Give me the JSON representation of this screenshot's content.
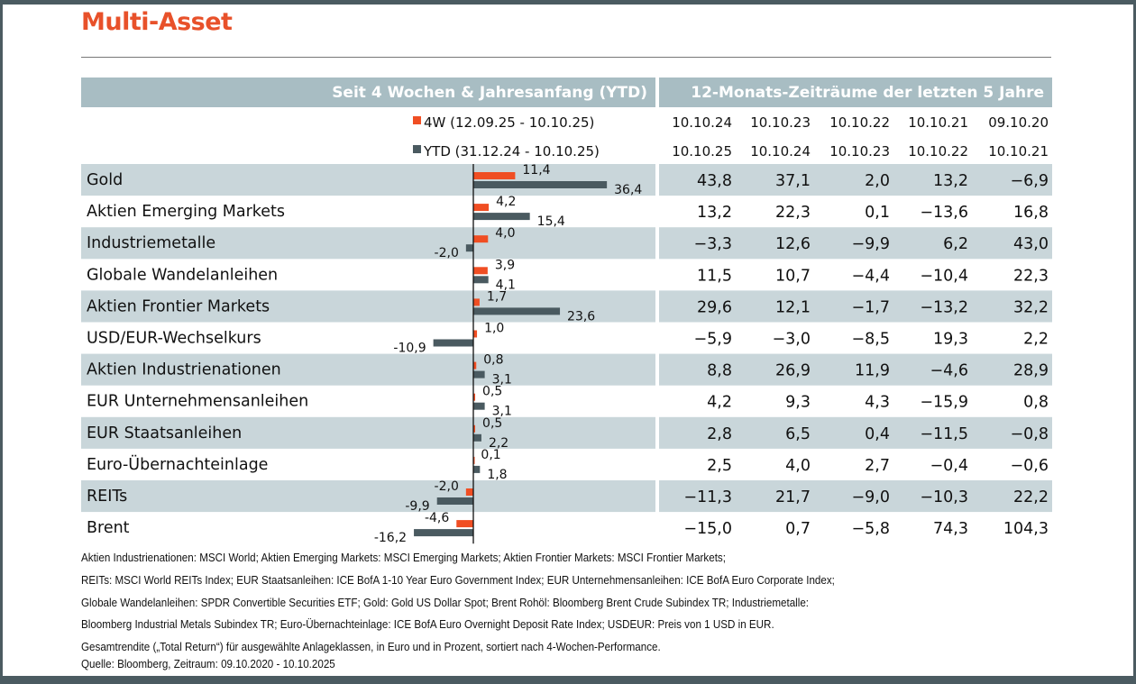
{
  "title": "Multi-Asset",
  "header_left": "Seit 4 Wochen & Jahresanfang (YTD)",
  "header_right": "12-Monats-Zeiträume der letzten 5 Jahre",
  "colors": {
    "w4": "#f04e23",
    "ytd": "#4a5a60",
    "header_bg": "#a8bdc3",
    "band": "#c9d6da",
    "title": "#e8512a"
  },
  "chart_data": {
    "type": "bar",
    "orientation": "horizontal",
    "legend": [
      "4W (12.09.25 - 10.10.25)",
      "YTD (31.12.24 - 10.10.25)"
    ],
    "categories": [
      "Gold",
      "Aktien Emerging Markets",
      "Industriemetalle",
      "Globale Wandelanleihen",
      "Aktien Frontier Markets",
      "USD/EUR-Wechselkurs",
      "Aktien Industrienationen",
      "EUR Unternehmensanleihen",
      "EUR Staatsanleihen",
      "Euro-Übernachteinlage",
      "REITs",
      "Brent"
    ],
    "series": [
      {
        "name": "4W (12.09.25 - 10.10.25)",
        "values": [
          11.4,
          4.2,
          4.0,
          3.9,
          1.7,
          1.0,
          0.8,
          0.5,
          0.5,
          0.1,
          -2.0,
          -4.6
        ]
      },
      {
        "name": "YTD (31.12.24 - 10.10.25)",
        "values": [
          36.4,
          15.4,
          -2.0,
          4.1,
          23.6,
          -10.9,
          3.1,
          3.1,
          2.2,
          1.8,
          -9.9,
          -16.2
        ]
      }
    ],
    "table": {
      "periods": [
        {
          "from": "10.10.24",
          "to": "10.10.25"
        },
        {
          "from": "10.10.23",
          "to": "10.10.24"
        },
        {
          "from": "10.10.22",
          "to": "10.10.23"
        },
        {
          "from": "10.10.21",
          "to": "10.10.22"
        },
        {
          "from": "09.10.20",
          "to": "10.10.21"
        }
      ],
      "rows": [
        [
          "43,8",
          "37,1",
          "2,0",
          "13,2",
          "-6,9"
        ],
        [
          "13,2",
          "22,3",
          "0,1",
          "-13,6",
          "16,8"
        ],
        [
          "-3,3",
          "12,6",
          "-9,9",
          "6,2",
          "43,0"
        ],
        [
          "11,5",
          "10,7",
          "-4,4",
          "-10,4",
          "22,3"
        ],
        [
          "29,6",
          "12,1",
          "-1,7",
          "-13,2",
          "32,2"
        ],
        [
          "-5,9",
          "-3,0",
          "-8,5",
          "19,3",
          "2,2"
        ],
        [
          "8,8",
          "26,9",
          "11,9",
          "-4,6",
          "28,9"
        ],
        [
          "4,2",
          "9,3",
          "4,3",
          "-15,9",
          "0,8"
        ],
        [
          "2,8",
          "6,5",
          "0,4",
          "-11,5",
          "-0,8"
        ],
        [
          "2,5",
          "4,0",
          "2,7",
          "-0,4",
          "-0,6"
        ],
        [
          "-11,3",
          "21,7",
          "-9,0",
          "-10,3",
          "22,2"
        ],
        [
          "-15,0",
          "0,7",
          "-5,8",
          "74,3",
          "104,3"
        ]
      ]
    }
  },
  "notes": [
    "Aktien Industrienationen: MSCI World; Aktien Emerging Markets: MSCI Emerging Markets; Aktien Frontier Markets: MSCI Frontier Markets;",
    "REITs: MSCI World REITs Index; EUR Staatsanleihen: ICE BofA 1-10 Year Euro Government Index; EUR Unternehmensanleihen: ICE BofA Euro Corporate Index;",
    "Globale Wandelanleihen: SPDR Convertible Securities ETF; Gold: Gold US Dollar Spot; Brent Rohöl: Bloomberg Brent Crude Subindex TR; Industriemetalle:",
    "Bloomberg Industrial Metals Subindex TR; Euro-Übernachteinlage: ICE BofA Euro Overnight Deposit Rate Index; USDEUR: Preis von 1 USD in EUR."
  ],
  "footer": [
    "Gesamtrendite („Total Return“) für ausgewählte Anlageklassen, in Euro und in Prozent, sortiert nach 4-Wochen-Performance.",
    "Quelle: Bloomberg, Zeitraum: 09.10.2020 - 10.10.2025"
  ]
}
